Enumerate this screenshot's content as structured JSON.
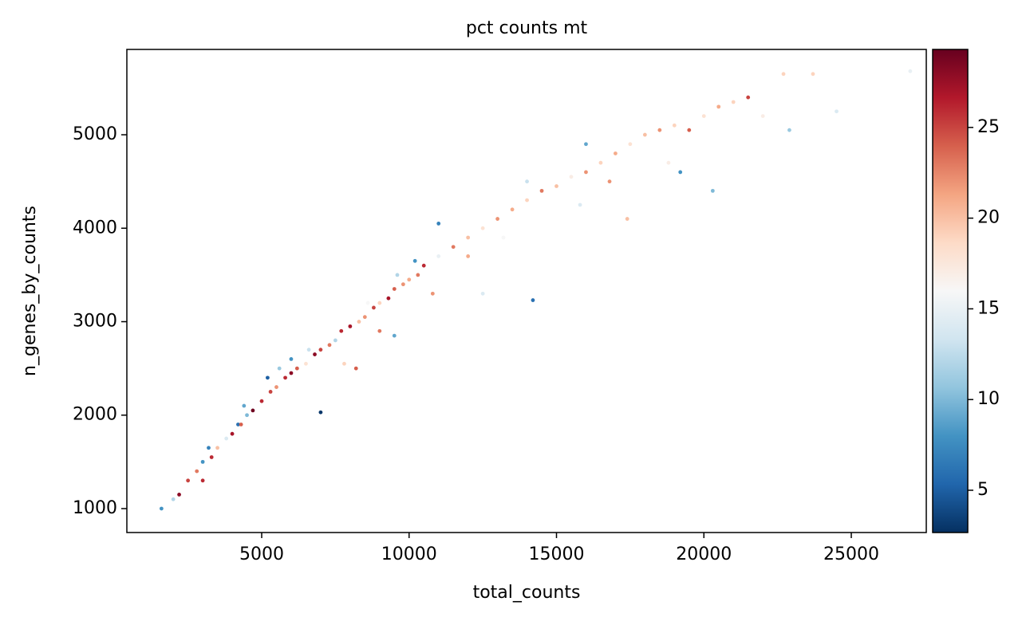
{
  "chart_data": {
    "type": "scatter",
    "title": "pct counts mt",
    "xlabel": "total_counts",
    "ylabel": "n_genes_by_counts",
    "xlim": [
      426,
      27544
    ],
    "ylim": [
      744,
      5913
    ],
    "xticks": [
      5000,
      10000,
      15000,
      20000,
      25000
    ],
    "yticks": [
      1000,
      2000,
      3000,
      4000,
      5000
    ],
    "x": [
      1600,
      2000,
      2500,
      3000,
      3500,
      4000,
      4500,
      5000,
      5500,
      6000,
      6500,
      7000,
      7500,
      8000,
      8500,
      9000,
      9500,
      10000,
      10500,
      11000,
      11500,
      12000,
      12500,
      13000,
      13500,
      14000,
      14500,
      15000,
      15500,
      16000,
      16500,
      17000,
      17500,
      18000,
      18500,
      19000,
      19500,
      20000,
      20500,
      21000,
      21500,
      22000,
      22700,
      23700,
      22900,
      24500,
      27000,
      7000,
      14200,
      10200,
      11000,
      20300,
      12500,
      9500,
      8200,
      3000,
      4200,
      5200,
      6000,
      7800,
      9000,
      10800,
      2200,
      2800,
      3300,
      3800,
      4300,
      4700,
      5300,
      5800,
      6200,
      6800,
      7300,
      7700,
      8300,
      8800,
      9300,
      9800,
      10300,
      3200,
      4400,
      5600,
      6600,
      8600,
      9600,
      12000,
      13200,
      15800,
      16800,
      18800,
      19200,
      16000,
      14000,
      17400
    ],
    "y": [
      1000,
      1100,
      1300,
      1500,
      1650,
      1800,
      2000,
      2150,
      2300,
      2450,
      2550,
      2700,
      2800,
      2950,
      3050,
      3200,
      3350,
      3450,
      3600,
      3700,
      3800,
      3900,
      4000,
      4100,
      4200,
      4300,
      4400,
      4450,
      4550,
      4600,
      4700,
      4800,
      4900,
      5000,
      5050,
      5100,
      5050,
      5200,
      5300,
      5350,
      5400,
      5200,
      5650,
      5650,
      5050,
      5250,
      5680,
      2030,
      3230,
      3650,
      4050,
      4400,
      3300,
      2850,
      2500,
      1300,
      1900,
      2400,
      2600,
      2550,
      2900,
      3300,
      1150,
      1400,
      1550,
      1750,
      1900,
      2050,
      2250,
      2400,
      2500,
      2650,
      2750,
      2900,
      3000,
      3150,
      3250,
      3400,
      3500,
      1650,
      2100,
      2500,
      2700,
      3200,
      3500,
      3700,
      3900,
      4250,
      4500,
      4700,
      4600,
      4900,
      4500,
      4100
    ],
    "c": [
      8,
      12,
      25,
      8,
      20,
      27,
      10,
      26,
      22,
      28,
      18,
      25,
      12,
      27,
      22,
      19,
      24,
      21,
      26,
      15,
      23,
      20,
      18,
      22,
      21,
      19,
      23,
      20,
      17,
      22,
      19,
      21,
      18,
      20,
      22,
      19,
      24,
      18,
      21,
      19,
      25,
      17,
      19,
      19,
      11,
      14,
      15,
      3,
      6,
      8,
      7,
      10,
      14,
      9,
      24,
      26,
      6,
      5,
      8,
      19,
      23,
      22,
      28,
      23,
      26,
      14,
      24,
      29,
      25,
      26,
      24,
      28,
      23,
      26,
      20,
      25,
      27,
      22,
      23,
      7,
      9,
      11,
      13,
      16,
      12,
      21,
      16,
      14,
      22,
      17,
      8,
      9,
      13,
      20
    ],
    "colormap": [
      "#053061",
      "#2166ac",
      "#4393c3",
      "#92c5de",
      "#d1e5f0",
      "#f7f7f7",
      "#fddbc7",
      "#f4a582",
      "#d6604d",
      "#b2182b",
      "#67001f"
    ],
    "clim": [
      2.67,
      29.3
    ],
    "cticks": [
      5,
      10,
      15,
      20,
      25
    ]
  }
}
